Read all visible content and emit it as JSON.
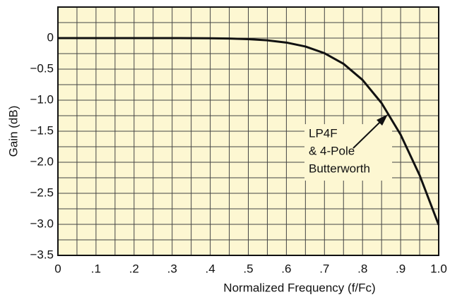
{
  "chart_data": {
    "type": "line",
    "x_label": "Normalized Frequency (f/Fc)",
    "y_label": "Gain (dB)",
    "x": [
      0,
      0.1,
      0.2,
      0.3,
      0.4,
      0.45,
      0.5,
      0.55,
      0.6,
      0.65,
      0.7,
      0.75,
      0.8,
      0.85,
      0.9,
      0.95,
      1.0
    ],
    "series": [
      {
        "name": "LP4F & 4-Pole Butterworth",
        "color": "#111111",
        "values": [
          0,
          0,
          0,
          0,
          -0.003,
          -0.007,
          -0.017,
          -0.036,
          -0.072,
          -0.136,
          -0.243,
          -0.414,
          -0.674,
          -1.047,
          -1.555,
          -2.21,
          -3.01
        ]
      }
    ],
    "annotation": [
      "LP4F",
      "& 4-Pole",
      "Butterworth"
    ],
    "xlim": [
      0,
      1.0
    ],
    "ylim": [
      -3.5,
      0.5
    ],
    "xticks": [
      0,
      {
        "value": 0.1,
        "label": ".1"
      },
      {
        "value": 0.2,
        "label": ".2"
      },
      {
        "value": 0.3,
        "label": ".3"
      },
      {
        "value": 0.4,
        "label": ".4"
      },
      {
        "value": 0.5,
        "label": ".5"
      },
      {
        "value": 0.6,
        "label": ".6"
      },
      {
        "value": 0.7,
        "label": ".7"
      },
      {
        "value": 0.8,
        "label": ".8"
      },
      {
        "value": 0.9,
        "label": ".9"
      },
      {
        "value": 1.0,
        "label": "1.0"
      }
    ],
    "yticks": [
      0,
      {
        "value": -0.5,
        "label": "−0.5"
      },
      {
        "value": -1.0,
        "label": "−1.0"
      },
      {
        "value": -1.5,
        "label": "−1.5"
      },
      {
        "value": -2.0,
        "label": "−2.0"
      },
      {
        "value": -2.5,
        "label": "−2.5"
      },
      {
        "value": -3.0,
        "label": "−3.0"
      },
      {
        "value": -3.5,
        "label": "−3.5"
      }
    ],
    "xgrid": [
      0.05,
      0.1,
      0.15,
      0.2,
      0.25,
      0.3,
      0.35,
      0.4,
      0.45,
      0.5,
      0.55,
      0.6,
      0.65,
      0.7,
      0.75,
      0.8,
      0.85,
      0.9,
      0.95
    ],
    "ygrid": [
      0.25,
      0,
      -0.25,
      -0.5,
      -0.75,
      -1.0,
      -1.25,
      -1.5,
      -1.75,
      -2.0,
      -2.25,
      -2.5,
      -2.75,
      -3.0,
      -3.25
    ],
    "grid": true
  }
}
